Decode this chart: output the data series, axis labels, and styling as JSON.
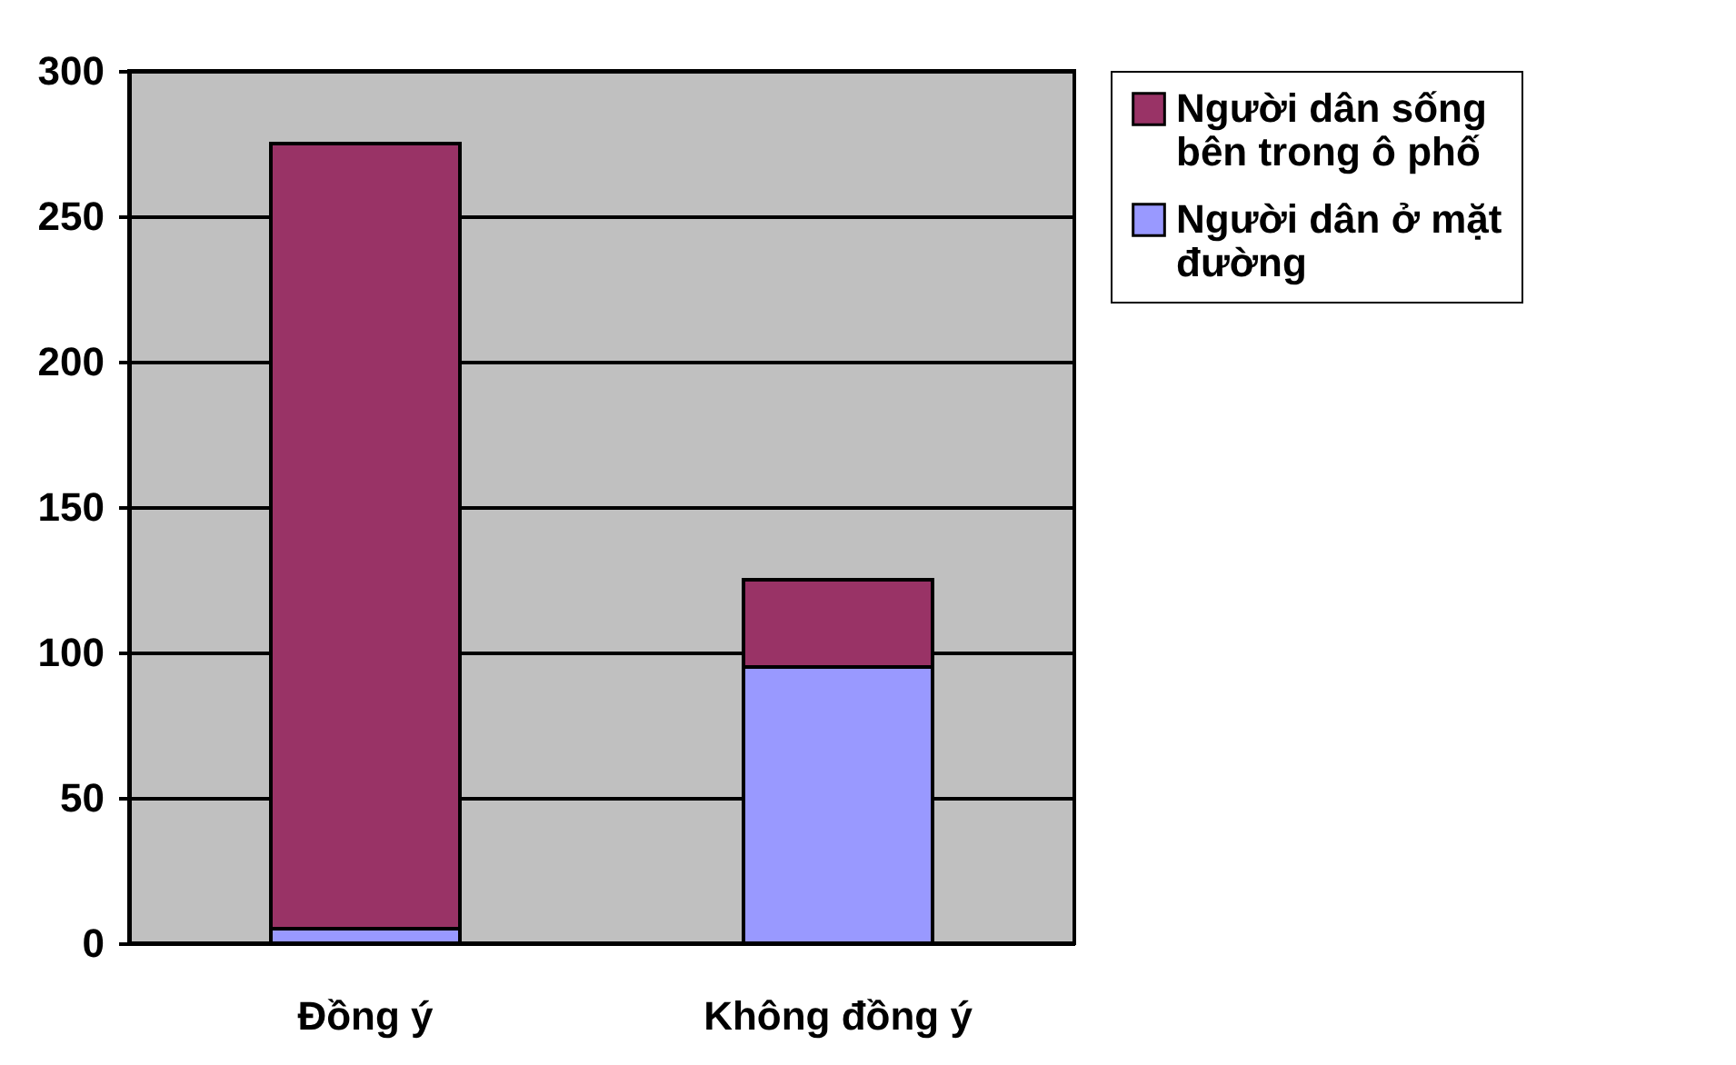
{
  "chart_data": {
    "type": "bar",
    "stacked": true,
    "categories": [
      "Đồng ý",
      "Không đồng ý"
    ],
    "series": [
      {
        "name": "Người dân ở mặt đường",
        "color": "#9999ff",
        "values": [
          5,
          95
        ]
      },
      {
        "name": "Người dân sống bên trong ô phố",
        "color": "#993366",
        "values": [
          270,
          30
        ]
      }
    ],
    "ylim": [
      0,
      300
    ],
    "yticks": [
      0,
      50,
      100,
      150,
      200,
      250,
      300
    ],
    "grid": "y",
    "legend": "right"
  }
}
